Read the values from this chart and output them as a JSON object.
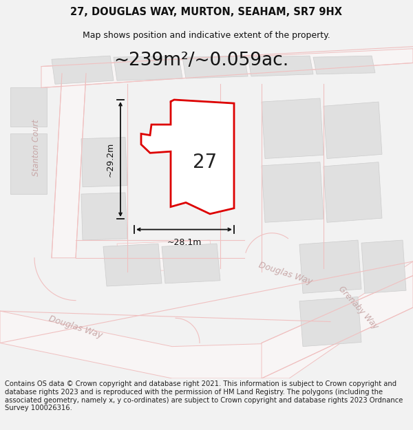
{
  "title_line1": "27, DOUGLAS WAY, MURTON, SEAHAM, SR7 9HX",
  "title_line2": "Map shows position and indicative extent of the property.",
  "area_text": "~239m²/~0.059ac.",
  "dim_horizontal": "~28.1m",
  "dim_vertical": "~29.2m",
  "label_number": "27",
  "footer_text": "Contains OS data © Crown copyright and database right 2021. This information is subject to Crown copyright and database rights 2023 and is reproduced with the permission of HM Land Registry. The polygons (including the associated geometry, namely x, y co-ordinates) are subject to Crown copyright and database rights 2023 Ordnance Survey 100026316.",
  "bg_color": "#f2f2f2",
  "map_bg": "#ffffff",
  "plot_edge": "#dd0000",
  "road_line_color": "#f0c0c0",
  "block_fill": "#e0e0e0",
  "block_edge": "#cccccc",
  "dim_color": "#111111",
  "street_color": "#c8a8a8",
  "title_fontsize": 10.5,
  "subtitle_fontsize": 9,
  "area_fontsize": 19,
  "footer_fontsize": 7.2,
  "prop_verts_x": [
    247,
    247,
    218,
    218,
    205,
    205,
    218,
    218,
    270,
    320,
    340,
    340,
    305,
    270,
    247
  ],
  "prop_verts_y": [
    370,
    385,
    385,
    370,
    355,
    342,
    332,
    325,
    310,
    298,
    370,
    240,
    230,
    245,
    240
  ]
}
